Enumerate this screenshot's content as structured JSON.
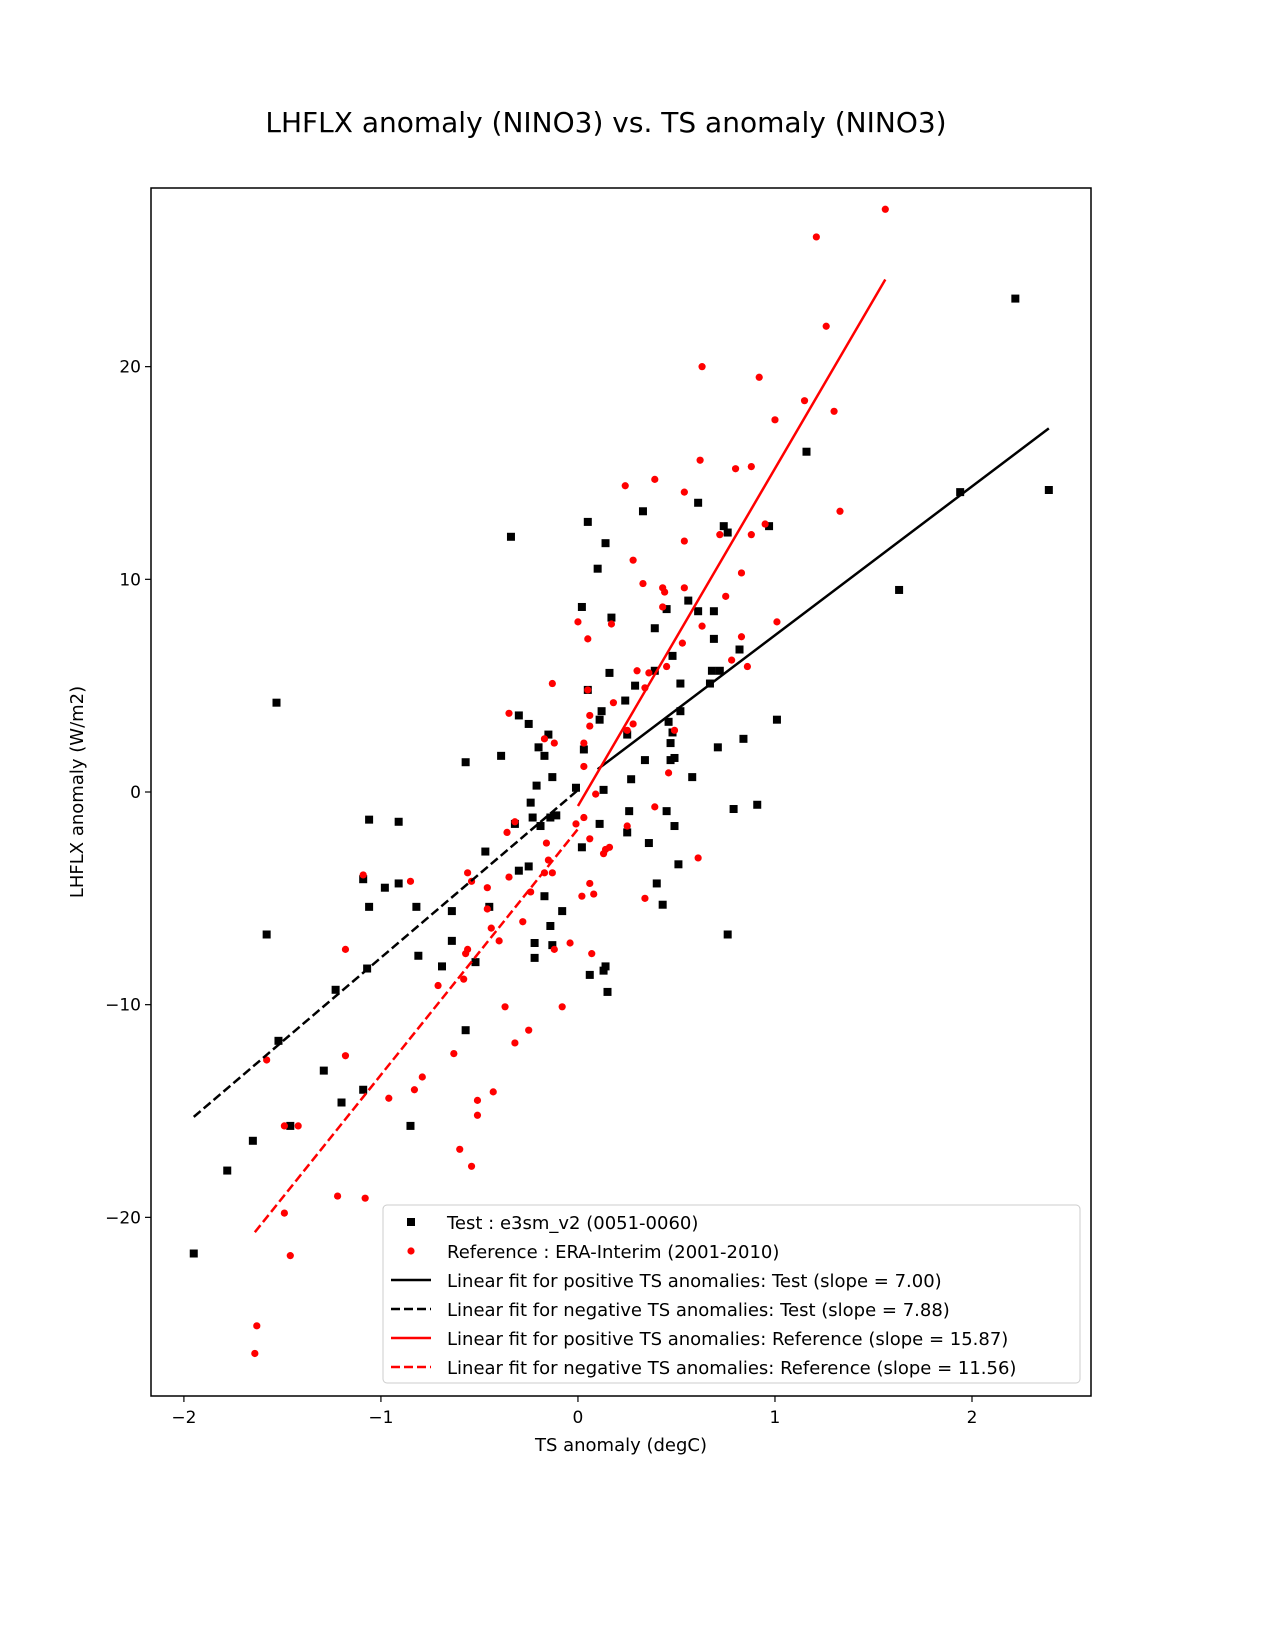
{
  "chart_data": {
    "type": "scatter",
    "title": "LHFLX anomaly (NINO3) vs. TS anomaly (NINO3)",
    "xlabel": "TS anomaly (degC)",
    "ylabel": "LHFLX anomaly (W/m2)",
    "xlim": [
      -2.167,
      2.604
    ],
    "ylim": [
      -28.4,
      28.4
    ],
    "xticks": [
      -2,
      -1,
      0,
      1,
      2
    ],
    "xtick_labels": [
      "−2",
      "−1",
      "0",
      "1",
      "2"
    ],
    "yticks": [
      -20,
      -10,
      0,
      10,
      20
    ],
    "ytick_labels": [
      "−20",
      "−10",
      "0",
      "10",
      "20"
    ],
    "grid": false,
    "legend_placement": "lower-right",
    "series": [
      {
        "name": "Test : e3sm_v2 (0051-0060)",
        "kind": "scatter",
        "marker": "square",
        "color": "#000000",
        "points": [
          [
            -1.95,
            -21.7
          ],
          [
            -1.78,
            -17.8
          ],
          [
            -1.65,
            -16.4
          ],
          [
            -1.58,
            -6.7
          ],
          [
            -1.53,
            4.2
          ],
          [
            -1.52,
            -11.7
          ],
          [
            -1.46,
            -15.7
          ],
          [
            -1.29,
            -13.1
          ],
          [
            -1.23,
            -9.3
          ],
          [
            -1.2,
            -14.6
          ],
          [
            -1.09,
            -14.0
          ],
          [
            -1.09,
            -4.1
          ],
          [
            -1.07,
            -8.3
          ],
          [
            -1.06,
            -1.3
          ],
          [
            -1.06,
            -5.4
          ],
          [
            -0.98,
            -4.5
          ],
          [
            -0.91,
            -1.4
          ],
          [
            -0.91,
            -4.3
          ],
          [
            -0.85,
            -15.7
          ],
          [
            -0.82,
            -5.4
          ],
          [
            -0.81,
            -7.7
          ],
          [
            -0.69,
            -8.2
          ],
          [
            -0.64,
            -7.0
          ],
          [
            -0.64,
            -5.6
          ],
          [
            -0.57,
            1.4
          ],
          [
            -0.57,
            -11.2
          ],
          [
            -0.52,
            -8.0
          ],
          [
            -0.47,
            -2.8
          ],
          [
            -0.45,
            -5.4
          ],
          [
            -0.39,
            1.7
          ],
          [
            -0.34,
            12.0
          ],
          [
            -0.32,
            -1.5
          ],
          [
            -0.3,
            3.6
          ],
          [
            -0.3,
            -3.7
          ],
          [
            -0.25,
            3.2
          ],
          [
            -0.25,
            -3.5
          ],
          [
            -0.24,
            -0.5
          ],
          [
            -0.23,
            -1.2
          ],
          [
            -0.22,
            -7.1
          ],
          [
            -0.22,
            -7.8
          ],
          [
            -0.21,
            0.3
          ],
          [
            -0.2,
            2.1
          ],
          [
            -0.19,
            -1.6
          ],
          [
            -0.17,
            1.7
          ],
          [
            -0.17,
            -4.9
          ],
          [
            -0.15,
            2.7
          ],
          [
            -0.14,
            -6.3
          ],
          [
            -0.14,
            -1.2
          ],
          [
            -0.13,
            0.7
          ],
          [
            -0.13,
            -7.2
          ],
          [
            -0.11,
            -1.1
          ],
          [
            -0.08,
            -5.6
          ],
          [
            -0.01,
            0.2
          ],
          [
            0.02,
            -2.6
          ],
          [
            0.02,
            8.7
          ],
          [
            0.03,
            2.0
          ],
          [
            0.05,
            12.7
          ],
          [
            0.05,
            4.8
          ],
          [
            0.06,
            -8.6
          ],
          [
            0.1,
            10.5
          ],
          [
            0.11,
            3.4
          ],
          [
            0.11,
            -1.5
          ],
          [
            0.12,
            3.8
          ],
          [
            0.13,
            -8.4
          ],
          [
            0.13,
            0.1
          ],
          [
            0.14,
            11.7
          ],
          [
            0.14,
            -8.2
          ],
          [
            0.15,
            -9.4
          ],
          [
            0.16,
            5.6
          ],
          [
            0.17,
            8.2
          ],
          [
            0.24,
            4.3
          ],
          [
            0.25,
            -1.9
          ],
          [
            0.25,
            2.7
          ],
          [
            0.26,
            -0.9
          ],
          [
            0.27,
            0.6
          ],
          [
            0.29,
            5.0
          ],
          [
            0.33,
            13.2
          ],
          [
            0.34,
            1.5
          ],
          [
            0.36,
            -2.4
          ],
          [
            0.39,
            7.7
          ],
          [
            0.39,
            5.7
          ],
          [
            0.4,
            -4.3
          ],
          [
            0.43,
            -5.3
          ],
          [
            0.45,
            8.6
          ],
          [
            0.45,
            -0.9
          ],
          [
            0.46,
            3.3
          ],
          [
            0.47,
            1.5
          ],
          [
            0.47,
            2.3
          ],
          [
            0.48,
            2.8
          ],
          [
            0.48,
            6.4
          ],
          [
            0.49,
            -1.6
          ],
          [
            0.49,
            1.6
          ],
          [
            0.51,
            -3.4
          ],
          [
            0.52,
            3.8
          ],
          [
            0.52,
            5.1
          ],
          [
            0.56,
            9.0
          ],
          [
            0.58,
            0.7
          ],
          [
            0.61,
            13.6
          ],
          [
            0.61,
            8.5
          ],
          [
            0.67,
            5.1
          ],
          [
            0.68,
            5.7
          ],
          [
            0.69,
            7.2
          ],
          [
            0.69,
            8.5
          ],
          [
            0.71,
            2.1
          ],
          [
            0.72,
            5.7
          ],
          [
            0.74,
            12.5
          ],
          [
            0.76,
            12.2
          ],
          [
            0.76,
            -6.7
          ],
          [
            0.79,
            -0.8
          ],
          [
            0.82,
            6.7
          ],
          [
            0.84,
            2.5
          ],
          [
            0.91,
            -0.6
          ],
          [
            0.97,
            12.5
          ],
          [
            1.01,
            3.4
          ],
          [
            1.16,
            16.0
          ],
          [
            1.63,
            9.5
          ],
          [
            1.94,
            14.1
          ],
          [
            2.22,
            23.2
          ],
          [
            2.39,
            14.2
          ]
        ]
      },
      {
        "name": "Reference : ERA-Interim (2001-2010)",
        "kind": "scatter",
        "marker": "circle",
        "color": "#ff0000",
        "points": [
          [
            -1.63,
            -25.1
          ],
          [
            -1.64,
            -26.4
          ],
          [
            -1.58,
            -12.6
          ],
          [
            -1.49,
            -15.7
          ],
          [
            -1.49,
            -19.8
          ],
          [
            -1.46,
            -21.8
          ],
          [
            -1.42,
            -15.7
          ],
          [
            -1.22,
            -19.0
          ],
          [
            -1.18,
            -7.4
          ],
          [
            -1.18,
            -12.4
          ],
          [
            -1.09,
            -3.9
          ],
          [
            -1.08,
            -19.1
          ],
          [
            -0.96,
            -14.4
          ],
          [
            -0.85,
            -4.2
          ],
          [
            -0.83,
            -14.0
          ],
          [
            -0.79,
            -13.4
          ],
          [
            -0.71,
            -9.1
          ],
          [
            -0.63,
            -12.3
          ],
          [
            -0.6,
            -16.8
          ],
          [
            -0.58,
            -8.8
          ],
          [
            -0.57,
            -7.6
          ],
          [
            -0.56,
            -7.4
          ],
          [
            -0.56,
            -3.8
          ],
          [
            -0.54,
            -4.2
          ],
          [
            -0.54,
            -17.6
          ],
          [
            -0.51,
            -14.5
          ],
          [
            -0.51,
            -15.2
          ],
          [
            -0.46,
            -4.5
          ],
          [
            -0.46,
            -5.5
          ],
          [
            -0.44,
            -6.4
          ],
          [
            -0.43,
            -14.1
          ],
          [
            -0.4,
            -7.0
          ],
          [
            -0.37,
            -10.1
          ],
          [
            -0.36,
            -1.9
          ],
          [
            -0.35,
            3.7
          ],
          [
            -0.35,
            -4.0
          ],
          [
            -0.32,
            -11.8
          ],
          [
            -0.32,
            -1.4
          ],
          [
            -0.28,
            -6.1
          ],
          [
            -0.25,
            -11.2
          ],
          [
            -0.24,
            -4.7
          ],
          [
            -0.17,
            -3.8
          ],
          [
            -0.17,
            2.5
          ],
          [
            -0.16,
            -2.4
          ],
          [
            -0.15,
            -3.2
          ],
          [
            -0.13,
            -3.8
          ],
          [
            -0.13,
            5.1
          ],
          [
            -0.12,
            2.3
          ],
          [
            -0.12,
            -7.4
          ],
          [
            -0.08,
            -10.1
          ],
          [
            -0.04,
            -7.1
          ],
          [
            -0.01,
            -1.5
          ],
          [
            0.0,
            8.0
          ],
          [
            0.02,
            -4.9
          ],
          [
            0.03,
            2.3
          ],
          [
            0.03,
            1.2
          ],
          [
            0.03,
            -1.2
          ],
          [
            0.05,
            7.2
          ],
          [
            0.05,
            4.8
          ],
          [
            0.06,
            3.6
          ],
          [
            0.06,
            3.1
          ],
          [
            0.06,
            -4.3
          ],
          [
            0.06,
            -2.2
          ],
          [
            0.07,
            -7.6
          ],
          [
            0.08,
            -4.8
          ],
          [
            0.09,
            -0.1
          ],
          [
            0.13,
            -2.9
          ],
          [
            0.14,
            -2.7
          ],
          [
            0.16,
            -2.6
          ],
          [
            0.17,
            7.9
          ],
          [
            0.18,
            4.2
          ],
          [
            0.24,
            14.4
          ],
          [
            0.25,
            -1.6
          ],
          [
            0.25,
            2.9
          ],
          [
            0.28,
            3.2
          ],
          [
            0.28,
            10.9
          ],
          [
            0.3,
            5.7
          ],
          [
            0.33,
            9.8
          ],
          [
            0.34,
            4.9
          ],
          [
            0.34,
            -5.0
          ],
          [
            0.36,
            5.6
          ],
          [
            0.39,
            14.7
          ],
          [
            0.39,
            -0.7
          ],
          [
            0.43,
            9.6
          ],
          [
            0.43,
            8.7
          ],
          [
            0.44,
            9.4
          ],
          [
            0.45,
            5.9
          ],
          [
            0.46,
            0.9
          ],
          [
            0.49,
            2.9
          ],
          [
            0.53,
            7.0
          ],
          [
            0.54,
            9.6
          ],
          [
            0.54,
            14.1
          ],
          [
            0.54,
            11.8
          ],
          [
            0.61,
            -3.1
          ],
          [
            0.62,
            15.6
          ],
          [
            0.63,
            20.0
          ],
          [
            0.63,
            7.8
          ],
          [
            0.72,
            12.1
          ],
          [
            0.75,
            9.2
          ],
          [
            0.78,
            6.2
          ],
          [
            0.8,
            15.2
          ],
          [
            0.83,
            10.3
          ],
          [
            0.83,
            7.3
          ],
          [
            0.86,
            5.9
          ],
          [
            0.88,
            15.3
          ],
          [
            0.88,
            12.1
          ],
          [
            0.92,
            19.5
          ],
          [
            0.95,
            12.6
          ],
          [
            1.0,
            17.5
          ],
          [
            1.01,
            8.0
          ],
          [
            1.15,
            18.4
          ],
          [
            1.21,
            26.1
          ],
          [
            1.26,
            21.9
          ],
          [
            1.3,
            17.9
          ],
          [
            1.33,
            13.2
          ],
          [
            1.56,
            27.4
          ]
        ]
      },
      {
        "name": "Linear fit for positive TS anomalies: Test (slope = 7.00)",
        "kind": "line",
        "dash": false,
        "color": "#000000",
        "slope": 7.0,
        "intercept": 0.37,
        "x_range": [
          0.1,
          2.39
        ]
      },
      {
        "name": "Linear fit for negative TS anomalies: Test (slope = 7.88)",
        "kind": "line",
        "dash": true,
        "color": "#000000",
        "slope": 7.88,
        "intercept": 0.09,
        "x_range": [
          -1.95,
          0.0
        ]
      },
      {
        "name": "Linear fit for positive TS anomalies: Reference (slope = 15.87)",
        "kind": "line",
        "dash": false,
        "color": "#ff0000",
        "slope": 15.87,
        "intercept": -0.66,
        "x_range": [
          0.0,
          1.56
        ]
      },
      {
        "name": "Linear fit for negative TS anomalies: Reference (slope = 11.56)",
        "kind": "line",
        "dash": true,
        "color": "#ff0000",
        "slope": 11.56,
        "intercept": -1.74,
        "x_range": [
          -1.64,
          0.0
        ]
      }
    ]
  }
}
